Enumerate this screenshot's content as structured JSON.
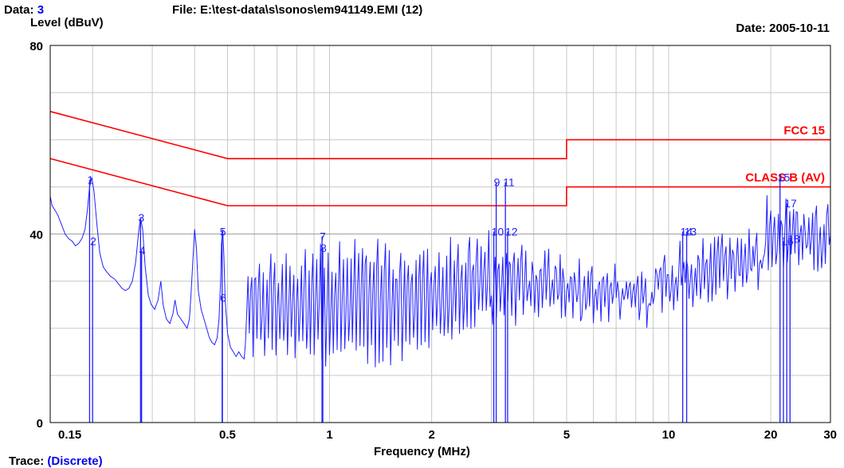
{
  "header": {
    "data_label": "Data:",
    "data_value": "3",
    "file_text": "File: E:\\test-data\\s\\sonos\\em941149.EMI  (12)",
    "date_text": "Date: 2005-10-11"
  },
  "footer": {
    "trace_label": "Trace:",
    "trace_value": "(Discrete)"
  },
  "colors": {
    "trace": "#2020ff",
    "limit": "#ff0000",
    "grid": "#c8c8c8",
    "marker_text": "#2222ff"
  },
  "chart_data": {
    "type": "line",
    "xlabel": "Frequency (MHz)",
    "ylabel": "Level (dBuV)",
    "x_scale": "log",
    "xlim": [
      0.15,
      30
    ],
    "ylim": [
      0,
      80
    ],
    "x_ticks": [
      {
        "value": 0.15,
        "label": "0.15"
      },
      {
        "value": 0.5,
        "label": "0.5"
      },
      {
        "value": 1,
        "label": "1"
      },
      {
        "value": 2,
        "label": "2"
      },
      {
        "value": 5,
        "label": "5"
      },
      {
        "value": 10,
        "label": "10"
      },
      {
        "value": 20,
        "label": "20"
      },
      {
        "value": 30,
        "label": "30"
      }
    ],
    "y_ticks": [
      {
        "value": 0,
        "label": "0"
      },
      {
        "value": 40,
        "label": "40"
      },
      {
        "value": 80,
        "label": "80"
      }
    ],
    "grid": true,
    "limit_lines": [
      {
        "name": "FCC 15",
        "points": [
          [
            0.15,
            66
          ],
          [
            0.5,
            56
          ],
          [
            5,
            56
          ],
          [
            5,
            60
          ],
          [
            30,
            60
          ]
        ]
      },
      {
        "name": "CLASS B (AV)",
        "points": [
          [
            0.15,
            56
          ],
          [
            0.5,
            46
          ],
          [
            5,
            46
          ],
          [
            5,
            50
          ],
          [
            30,
            50
          ]
        ]
      }
    ],
    "trace_points": [
      [
        0.15,
        48
      ],
      [
        0.152,
        46
      ],
      [
        0.155,
        45
      ],
      [
        0.158,
        44
      ],
      [
        0.162,
        42
      ],
      [
        0.166,
        40
      ],
      [
        0.17,
        39
      ],
      [
        0.174,
        38.5
      ],
      [
        0.178,
        37.5
      ],
      [
        0.182,
        38
      ],
      [
        0.186,
        39
      ],
      [
        0.19,
        41
      ],
      [
        0.193,
        45
      ],
      [
        0.196,
        50
      ],
      [
        0.199,
        52
      ],
      [
        0.202,
        49
      ],
      [
        0.206,
        42
      ],
      [
        0.21,
        36
      ],
      [
        0.215,
        33
      ],
      [
        0.22,
        32
      ],
      [
        0.226,
        31
      ],
      [
        0.232,
        30.5
      ],
      [
        0.238,
        29.5
      ],
      [
        0.244,
        28.5
      ],
      [
        0.25,
        28
      ],
      [
        0.256,
        28.5
      ],
      [
        0.262,
        30
      ],
      [
        0.268,
        34
      ],
      [
        0.273,
        40
      ],
      [
        0.277,
        43.5
      ],
      [
        0.281,
        41
      ],
      [
        0.286,
        33
      ],
      [
        0.292,
        27
      ],
      [
        0.298,
        25
      ],
      [
        0.305,
        24
      ],
      [
        0.312,
        26
      ],
      [
        0.318,
        30
      ],
      [
        0.323,
        25
      ],
      [
        0.33,
        22
      ],
      [
        0.338,
        21
      ],
      [
        0.345,
        23
      ],
      [
        0.35,
        26
      ],
      [
        0.356,
        23
      ],
      [
        0.364,
        22
      ],
      [
        0.372,
        21
      ],
      [
        0.38,
        20
      ],
      [
        0.386,
        22
      ],
      [
        0.39,
        27
      ],
      [
        0.395,
        34
      ],
      [
        0.4,
        41
      ],
      [
        0.405,
        37
      ],
      [
        0.41,
        28
      ],
      [
        0.418,
        24
      ],
      [
        0.426,
        22
      ],
      [
        0.434,
        20
      ],
      [
        0.442,
        18
      ],
      [
        0.45,
        17
      ],
      [
        0.458,
        16.5
      ],
      [
        0.466,
        18
      ],
      [
        0.472,
        22
      ],
      [
        0.477,
        30
      ],
      [
        0.48,
        38
      ],
      [
        0.484,
        41
      ],
      [
        0.488,
        35
      ],
      [
        0.492,
        26
      ],
      [
        0.5,
        19
      ],
      [
        0.51,
        16
      ],
      [
        0.52,
        15
      ],
      [
        0.53,
        14
      ],
      [
        0.54,
        15
      ],
      [
        0.55,
        14
      ],
      [
        0.56,
        13.5
      ]
    ],
    "noise_segments": [
      {
        "x_start": 0.56,
        "x_end": 1.5,
        "floor_start": 13,
        "floor_end": 11,
        "peak_start": 36,
        "peak_end": 40
      },
      {
        "x_start": 1.5,
        "x_end": 3.0,
        "floor_start": 12,
        "floor_end": 20,
        "peak_start": 38,
        "peak_end": 42
      },
      {
        "x_start": 3.0,
        "x_end": 5.5,
        "floor_start": 20,
        "floor_end": 21,
        "peak_start": 39,
        "peak_end": 36
      },
      {
        "x_start": 5.5,
        "x_end": 9.0,
        "floor_start": 21,
        "floor_end": 20,
        "peak_start": 35,
        "peak_end": 33
      },
      {
        "x_start": 9.0,
        "x_end": 19.0,
        "floor_start": 22,
        "floor_end": 28,
        "peak_start": 38,
        "peak_end": 42
      },
      {
        "x_start": 19.0,
        "x_end": 30.0,
        "floor_start": 30,
        "floor_end": 32,
        "peak_start": 49,
        "peak_end": 48
      }
    ],
    "markers": [
      {
        "id": "1",
        "freq": 0.196,
        "level": 51.5
      },
      {
        "id": "2",
        "freq": 0.2,
        "level": 38.5
      },
      {
        "id": "3",
        "freq": 0.277,
        "level": 43.5
      },
      {
        "id": "4",
        "freq": 0.279,
        "level": 36.5
      },
      {
        "id": "5",
        "freq": 0.482,
        "level": 40.5
      },
      {
        "id": "6",
        "freq": 0.483,
        "level": 26.5
      },
      {
        "id": "7",
        "freq": 0.95,
        "level": 39.5
      },
      {
        "id": "8",
        "freq": 0.955,
        "level": 37
      },
      {
        "id": "9",
        "freq": 3.1,
        "level": 51
      },
      {
        "id": "10",
        "freq": 3.05,
        "level": 40.5
      },
      {
        "id": "11",
        "freq": 3.3,
        "level": 51
      },
      {
        "id": "12",
        "freq": 3.35,
        "level": 40.5
      },
      {
        "id": "13",
        "freq": 11.3,
        "level": 40.5
      },
      {
        "id": "14",
        "freq": 11.0,
        "level": 40.5
      },
      {
        "id": "15",
        "freq": 21.3,
        "level": 52
      },
      {
        "id": "16",
        "freq": 21.8,
        "level": 38.5
      },
      {
        "id": "17",
        "freq": 22.3,
        "level": 46.5
      },
      {
        "id": "18",
        "freq": 22.8,
        "level": 39
      }
    ]
  }
}
